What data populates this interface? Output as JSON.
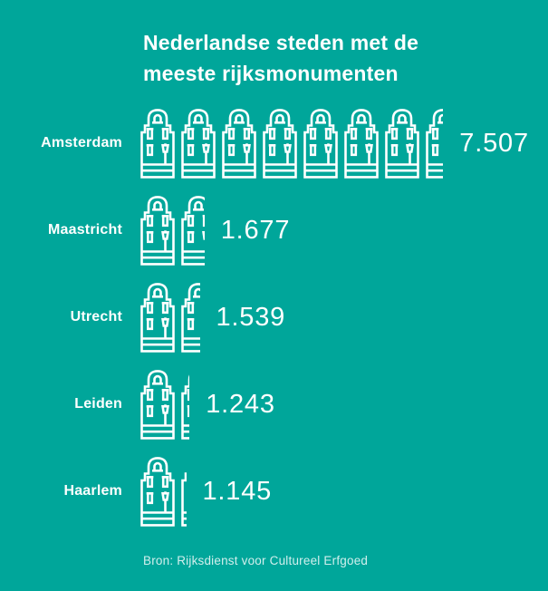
{
  "app": {
    "background_color": "#00a69a",
    "foreground_color": "#ffffff"
  },
  "title": "Nederlandse steden met de meeste rijksmonumenten",
  "source": "Bron: Rijksdienst voor Cultureel Erfgoed",
  "chart_data": {
    "type": "bar",
    "subtype": "pictogram",
    "icon": "canal-house",
    "units_per_icon": 1000,
    "categories": [
      "Amsterdam",
      "Maastricht",
      "Utrecht",
      "Leiden",
      "Haarlem"
    ],
    "values": [
      7507,
      1677,
      1539,
      1243,
      1145
    ],
    "value_labels": [
      "7.507",
      "1.677",
      "1.539",
      "1.243",
      "1.145"
    ],
    "title": "Nederlandse steden met de meeste rijksmonumenten",
    "xlabel": "",
    "ylabel": "",
    "legend": null,
    "grid": false,
    "orientation": "horizontal",
    "source": "Bron: Rijksdienst voor Cultureel Erfgoed"
  }
}
